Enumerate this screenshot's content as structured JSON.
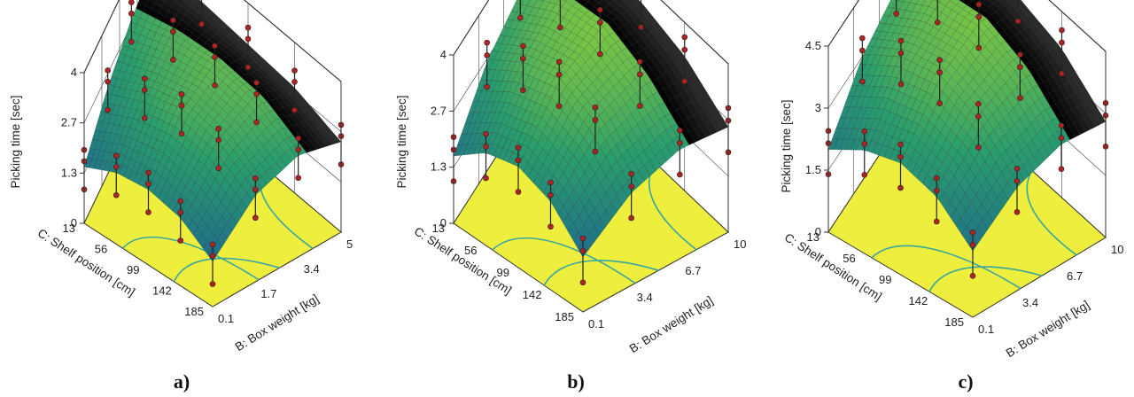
{
  "figure": {
    "panels": [
      {
        "id": "a",
        "caption": "a)",
        "zlabel": "Picking time [sec]",
        "xlabel": "B: Box weight [kg]",
        "ylabel": "C: Shelf position [cm]",
        "zticks": [
          "0",
          "1.3",
          "2.7",
          "4"
        ],
        "xticks": [
          "0.1",
          "1.7",
          "3.4",
          "5"
        ],
        "yticks": [
          "13",
          "56",
          "99",
          "142",
          "185"
        ]
      },
      {
        "id": "b",
        "caption": "b)",
        "zlabel": "Picking time [sec]",
        "xlabel": "B: Box weight [kg]",
        "ylabel": "C: Shelf position [cm]",
        "zticks": [
          "0",
          "1.3",
          "2.7",
          "4"
        ],
        "xticks": [
          "0.1",
          "3.4",
          "6.7",
          "10"
        ],
        "yticks": [
          "13",
          "56",
          "99",
          "142",
          "185"
        ]
      },
      {
        "id": "c",
        "caption": "c)",
        "zlabel": "Picking time [sec]",
        "xlabel": "B: Box weight [kg]",
        "ylabel": "C: Shelf position [cm]",
        "zticks": [
          "0",
          "1.5",
          "3",
          "4.5"
        ],
        "xticks": [
          "0.1",
          "3.4",
          "6.7",
          "10"
        ],
        "yticks": [
          "13",
          "56",
          "99",
          "142",
          "185"
        ]
      }
    ]
  },
  "chart_data": [
    {
      "type": "surface",
      "x_name": "B: Box weight [kg]",
      "x_range": [
        0.1,
        5
      ],
      "y_name": "C: Shelf position [cm]",
      "y_range": [
        13,
        185
      ],
      "z_name": "Picking time [sec]",
      "z_range": [
        0,
        4
      ],
      "x_grid": [
        0.1,
        1.7,
        3.4,
        5
      ],
      "y_grid": [
        13,
        56,
        99,
        142,
        185
      ],
      "z_values": [
        [
          1.5,
          2.3,
          2.8,
          3.0
        ],
        [
          1.9,
          2.8,
          3.2,
          3.0
        ],
        [
          2.0,
          3.1,
          3.4,
          2.9
        ],
        [
          1.8,
          2.9,
          3.3,
          2.8
        ],
        [
          1.2,
          2.3,
          2.7,
          2.4
        ]
      ],
      "contour_plot": "base (z=0)",
      "surface_colors": [
        "#1e3a8a",
        "#1f6e8c",
        "#2a9d6e",
        "#8ccf3b",
        "#2b2b2b"
      ],
      "point_color": "#b22222"
    },
    {
      "type": "surface",
      "x_name": "B: Box weight [kg]",
      "x_range": [
        0.1,
        10
      ],
      "y_name": "C: Shelf position [cm]",
      "y_range": [
        13,
        185
      ],
      "z_name": "Picking time [sec]",
      "z_range": [
        0,
        4
      ],
      "x_grid": [
        0.1,
        3.4,
        6.7,
        10
      ],
      "y_grid": [
        13,
        56,
        99,
        142,
        185
      ],
      "z_values": [
        [
          1.6,
          2.6,
          3.0,
          3.2
        ],
        [
          2.2,
          3.2,
          3.6,
          3.4
        ],
        [
          2.4,
          3.5,
          3.8,
          3.5
        ],
        [
          2.1,
          3.1,
          3.4,
          3.2
        ],
        [
          1.3,
          2.2,
          2.6,
          2.5
        ]
      ],
      "contour_plot": "base (z=0)",
      "surface_colors": [
        "#1e3a8a",
        "#1f6e8c",
        "#2a9d6e",
        "#8ccf3b",
        "#2b2b2b"
      ],
      "point_color": "#b22222"
    },
    {
      "type": "surface",
      "x_name": "B: Box weight [kg]",
      "x_range": [
        0.1,
        10
      ],
      "y_name": "C: Shelf position [cm]",
      "y_range": [
        13,
        185
      ],
      "z_name": "Picking time [sec]",
      "z_range": [
        0,
        4.5
      ],
      "x_grid": [
        0.1,
        3.4,
        6.7,
        10
      ],
      "y_grid": [
        13,
        56,
        99,
        142,
        185
      ],
      "z_values": [
        [
          2.0,
          3.0,
          3.4,
          3.5
        ],
        [
          2.5,
          3.6,
          4.0,
          3.8
        ],
        [
          2.7,
          3.8,
          4.2,
          3.9
        ],
        [
          2.4,
          3.4,
          3.8,
          3.6
        ],
        [
          1.6,
          2.5,
          2.9,
          2.8
        ]
      ],
      "contour_plot": "base (z=0)",
      "surface_colors": [
        "#1e3a8a",
        "#1f6e8c",
        "#2a9d6e",
        "#8ccf3b",
        "#2b2b2b"
      ],
      "point_color": "#b22222"
    }
  ]
}
